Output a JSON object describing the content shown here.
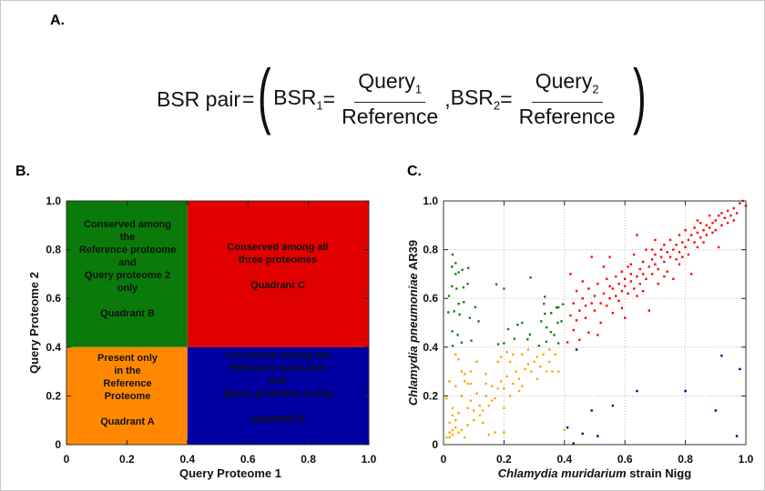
{
  "panels": {
    "a": "A.",
    "b": "B.",
    "c": "C."
  },
  "formula": {
    "lhs": "BSR pair",
    "eq": "=",
    "bsr1": "BSR",
    "bsr1_sub": "1",
    "q1": "Query",
    "q1_sub": "1",
    "ref1": "Reference",
    "comma": ",",
    "bsr2": "BSR",
    "bsr2_sub": "2",
    "q2": "Query",
    "q2_sub": "2",
    "ref2": "Reference"
  },
  "quadrant_chart": {
    "type": "diagram",
    "xlabel": "Query Proteome 1",
    "ylabel": "Query Proteome 2",
    "xlim": [
      0,
      1.0
    ],
    "ylim": [
      0,
      1.0
    ],
    "x_ticks": [
      "0",
      "0.2",
      "0.4",
      "0.6",
      "0.8",
      "1.0"
    ],
    "y_ticks": [
      "0",
      "0.2",
      "0.4",
      "0.6",
      "0.8",
      "1.0"
    ],
    "threshold": 0.4,
    "quadrants": [
      {
        "id": "B",
        "color": "#0a7a0a",
        "lines": [
          "Conserved among",
          "the",
          "Reference proteome",
          "and",
          "Query proteome 2",
          "only"
        ],
        "name": "Quadrant B"
      },
      {
        "id": "C",
        "color": "#e00000",
        "lines": [
          "Conserved among all",
          "three proteomes"
        ],
        "name": "Quadrant C"
      },
      {
        "id": "A",
        "color": "#ff8800",
        "lines": [
          "Present only",
          "in the",
          "Reference",
          "Proteome"
        ],
        "name": "Quadrant A"
      },
      {
        "id": "D",
        "color": "#0000a2",
        "lines": [
          "Conserved among the",
          "Reference proteome",
          "and",
          "Query proteome 1 only"
        ],
        "name": "Quadrant D"
      }
    ]
  },
  "chart_data": {
    "type": "scatter",
    "xlabel_italic": "Chlamydia muridarium",
    "xlabel_rest": " strain Nigg",
    "ylabel_italic": "Chlamydia pneumoniae",
    "ylabel_rest": " AR39",
    "xlim": [
      0,
      1.0
    ],
    "ylim": [
      0,
      1.0
    ],
    "x_ticks": [
      "0",
      "0.2",
      "0.4",
      "0.6",
      "0.8",
      "1.0"
    ],
    "y_ticks": [
      "0",
      "0.2",
      "0.4",
      "0.6",
      "0.8",
      "1.0"
    ],
    "grid": true,
    "series": [
      {
        "color": "#ffa500",
        "points": [
          [
            0.01,
            0.03
          ],
          [
            0.01,
            0.19
          ],
          [
            0.02,
            0.05
          ],
          [
            0.02,
            0.03
          ],
          [
            0.02,
            0.09
          ],
          [
            0.02,
            0.26
          ],
          [
            0.03,
            0.06
          ],
          [
            0.03,
            0.12
          ],
          [
            0.03,
            0.15
          ],
          [
            0.03,
            0.04
          ],
          [
            0.04,
            0.07
          ],
          [
            0.04,
            0.1
          ],
          [
            0.04,
            0.24
          ],
          [
            0.04,
            0.37
          ],
          [
            0.05,
            0.05
          ],
          [
            0.05,
            0.13
          ],
          [
            0.05,
            0.35
          ],
          [
            0.06,
            0.06
          ],
          [
            0.06,
            0.2
          ],
          [
            0.06,
            0.3
          ],
          [
            0.07,
            0.03
          ],
          [
            0.07,
            0.26
          ],
          [
            0.07,
            0.29
          ],
          [
            0.08,
            0.08
          ],
          [
            0.08,
            0.15
          ],
          [
            0.08,
            0.25
          ],
          [
            0.09,
            0.18
          ],
          [
            0.09,
            0.3
          ],
          [
            0.1,
            0.1
          ],
          [
            0.1,
            0.14
          ],
          [
            0.11,
            0.34
          ],
          [
            0.12,
            0.16
          ],
          [
            0.12,
            0.12
          ],
          [
            0.13,
            0.14
          ],
          [
            0.14,
            0.29
          ],
          [
            0.14,
            0.2
          ],
          [
            0.14,
            0.25
          ],
          [
            0.15,
            0.04
          ],
          [
            0.15,
            0.16
          ],
          [
            0.16,
            0.18
          ],
          [
            0.16,
            0.24
          ],
          [
            0.17,
            0.19
          ],
          [
            0.17,
            0.05
          ],
          [
            0.18,
            0.34
          ],
          [
            0.18,
            0.23
          ],
          [
            0.19,
            0.36
          ],
          [
            0.19,
            0.26
          ],
          [
            0.2,
            0.15
          ],
          [
            0.2,
            0.05
          ],
          [
            0.2,
            0.23
          ],
          [
            0.21,
            0.28
          ],
          [
            0.21,
            0.38
          ],
          [
            0.22,
            0.2
          ],
          [
            0.22,
            0.34
          ],
          [
            0.23,
            0.37
          ],
          [
            0.23,
            0.25
          ],
          [
            0.24,
            0.3
          ],
          [
            0.25,
            0.22
          ],
          [
            0.25,
            0.27
          ],
          [
            0.26,
            0.37
          ],
          [
            0.26,
            0.24
          ],
          [
            0.27,
            0.31
          ],
          [
            0.28,
            0.33
          ],
          [
            0.28,
            0.39
          ],
          [
            0.29,
            0.3
          ],
          [
            0.3,
            0.34
          ],
          [
            0.31,
            0.27
          ],
          [
            0.31,
            0.36
          ],
          [
            0.32,
            0.32
          ],
          [
            0.33,
            0.37
          ],
          [
            0.34,
            0.3
          ],
          [
            0.35,
            0.39
          ],
          [
            0.35,
            0.34
          ],
          [
            0.36,
            0.3
          ],
          [
            0.37,
            0.37
          ],
          [
            0.38,
            0.3
          ],
          [
            0.4,
            0.06
          ],
          [
            0.11,
            0.21
          ],
          [
            0.13,
            0.09
          ],
          [
            0.09,
            0.25
          ]
        ]
      },
      {
        "color": "#1a7a1a",
        "points": [
          [
            0.03,
            0.78
          ],
          [
            0.04,
            0.745
          ],
          [
            0.028,
            0.73
          ],
          [
            0.062,
            0.717
          ],
          [
            0.082,
            0.725
          ],
          [
            0.04,
            0.7
          ],
          [
            0.05,
            0.707
          ],
          [
            0.028,
            0.65
          ],
          [
            0.043,
            0.64
          ],
          [
            0.066,
            0.645
          ],
          [
            0.08,
            0.66
          ],
          [
            0.018,
            0.61
          ],
          [
            0.067,
            0.585
          ],
          [
            0.05,
            0.578
          ],
          [
            0.105,
            0.564
          ],
          [
            0.016,
            0.543
          ],
          [
            0.035,
            0.547
          ],
          [
            0.053,
            0.534
          ],
          [
            0.087,
            0.52
          ],
          [
            0.116,
            0.506
          ],
          [
            0.029,
            0.465
          ],
          [
            0.047,
            0.45
          ],
          [
            0.03,
            0.405
          ],
          [
            0.06,
            0.419
          ],
          [
            0.092,
            0.427
          ],
          [
            0.175,
            0.658
          ],
          [
            0.2,
            0.64
          ],
          [
            0.288,
            0.686
          ],
          [
            0.214,
            0.474
          ],
          [
            0.245,
            0.492
          ],
          [
            0.26,
            0.5
          ],
          [
            0.181,
            0.412
          ],
          [
            0.2,
            0.416
          ],
          [
            0.235,
            0.434
          ],
          [
            0.286,
            0.452
          ],
          [
            0.278,
            0.432
          ],
          [
            0.335,
            0.607
          ],
          [
            0.332,
            0.578
          ],
          [
            0.323,
            0.506
          ],
          [
            0.335,
            0.537
          ],
          [
            0.356,
            0.54
          ],
          [
            0.374,
            0.563
          ],
          [
            0.38,
            0.563
          ],
          [
            0.395,
            0.576
          ],
          [
            0.341,
            0.481
          ],
          [
            0.355,
            0.462
          ],
          [
            0.366,
            0.45
          ],
          [
            0.378,
            0.5
          ],
          [
            0.39,
            0.506
          ],
          [
            0.316,
            0.406
          ],
          [
            0.34,
            0.422
          ],
          [
            0.38,
            0.416
          ]
        ]
      },
      {
        "color": "#ff0000",
        "points": [
          [
            0.41,
            0.42
          ],
          [
            0.42,
            0.53
          ],
          [
            0.42,
            0.7
          ],
          [
            0.43,
            0.47
          ],
          [
            0.43,
            0.58
          ],
          [
            0.44,
            0.51
          ],
          [
            0.44,
            0.63
          ],
          [
            0.45,
            0.55
          ],
          [
            0.45,
            0.43
          ],
          [
            0.46,
            0.6
          ],
          [
            0.46,
            0.67
          ],
          [
            0.47,
            0.52
          ],
          [
            0.47,
            0.57
          ],
          [
            0.48,
            0.46
          ],
          [
            0.48,
            0.64
          ],
          [
            0.49,
            0.58
          ],
          [
            0.49,
            0.77
          ],
          [
            0.5,
            0.55
          ],
          [
            0.5,
            0.61
          ],
          [
            0.51,
            0.66
          ],
          [
            0.51,
            0.45
          ],
          [
            0.52,
            0.58
          ],
          [
            0.52,
            0.5
          ],
          [
            0.53,
            0.73
          ],
          [
            0.53,
            0.62
          ],
          [
            0.54,
            0.57
          ],
          [
            0.54,
            0.68
          ],
          [
            0.55,
            0.6
          ],
          [
            0.55,
            0.77
          ],
          [
            0.56,
            0.64
          ],
          [
            0.56,
            0.54
          ],
          [
            0.57,
            0.69
          ],
          [
            0.57,
            0.61
          ],
          [
            0.58,
            0.66
          ],
          [
            0.58,
            0.59
          ],
          [
            0.59,
            0.71
          ],
          [
            0.59,
            0.63
          ],
          [
            0.6,
            0.52
          ],
          [
            0.6,
            0.68
          ],
          [
            0.6,
            0.65
          ],
          [
            0.61,
            0.73
          ],
          [
            0.61,
            0.62
          ],
          [
            0.62,
            0.67
          ],
          [
            0.62,
            0.7
          ],
          [
            0.63,
            0.78
          ],
          [
            0.63,
            0.64
          ],
          [
            0.64,
            0.69
          ],
          [
            0.64,
            0.61
          ],
          [
            0.64,
            0.86
          ],
          [
            0.65,
            0.72
          ],
          [
            0.65,
            0.66
          ],
          [
            0.66,
            0.7
          ],
          [
            0.66,
            0.75
          ],
          [
            0.67,
            0.68
          ],
          [
            0.67,
            0.8
          ],
          [
            0.68,
            0.73
          ],
          [
            0.68,
            0.55
          ],
          [
            0.69,
            0.76
          ],
          [
            0.69,
            0.7
          ],
          [
            0.7,
            0.74
          ],
          [
            0.7,
            0.78
          ],
          [
            0.7,
            0.84
          ],
          [
            0.71,
            0.72
          ],
          [
            0.71,
            0.66
          ],
          [
            0.72,
            0.77
          ],
          [
            0.72,
            0.8
          ],
          [
            0.73,
            0.75
          ],
          [
            0.73,
            0.82
          ],
          [
            0.74,
            0.79
          ],
          [
            0.74,
            0.71
          ],
          [
            0.75,
            0.77
          ],
          [
            0.75,
            0.84
          ],
          [
            0.76,
            0.8
          ],
          [
            0.76,
            0.68
          ],
          [
            0.77,
            0.82
          ],
          [
            0.77,
            0.76
          ],
          [
            0.78,
            0.79
          ],
          [
            0.78,
            0.86
          ],
          [
            0.79,
            0.83
          ],
          [
            0.79,
            0.77
          ],
          [
            0.8,
            0.81
          ],
          [
            0.8,
            0.88
          ],
          [
            0.81,
            0.84
          ],
          [
            0.81,
            0.78
          ],
          [
            0.82,
            0.86
          ],
          [
            0.82,
            0.7
          ],
          [
            0.83,
            0.83
          ],
          [
            0.83,
            0.89
          ],
          [
            0.84,
            0.87
          ],
          [
            0.84,
            0.81
          ],
          [
            0.85,
            0.85
          ],
          [
            0.85,
            0.91
          ],
          [
            0.86,
            0.88
          ],
          [
            0.86,
            0.83
          ],
          [
            0.87,
            0.9
          ],
          [
            0.87,
            0.86
          ],
          [
            0.88,
            0.89
          ],
          [
            0.88,
            0.94
          ],
          [
            0.89,
            0.87
          ],
          [
            0.89,
            0.91
          ],
          [
            0.9,
            0.92
          ],
          [
            0.9,
            0.88
          ],
          [
            0.91,
            0.81
          ],
          [
            0.91,
            0.94
          ],
          [
            0.92,
            0.9
          ],
          [
            0.92,
            0.95
          ],
          [
            0.93,
            0.93
          ],
          [
            0.94,
            0.96
          ],
          [
            0.94,
            0.91
          ],
          [
            0.95,
            0.94
          ],
          [
            0.96,
            0.97
          ],
          [
            0.96,
            0.92
          ],
          [
            0.97,
            0.95
          ],
          [
            0.98,
            0.99
          ],
          [
            0.99,
            1.0
          ],
          [
            1.0,
            0.98
          ],
          [
            0.59,
            0.56
          ],
          [
            0.66,
            0.63
          ],
          [
            0.73,
            0.69
          ],
          [
            0.78,
            0.74
          ],
          [
            0.62,
            0.74
          ],
          [
            0.55,
            0.65
          ],
          [
            0.69,
            0.8
          ],
          [
            0.84,
            0.92
          ]
        ]
      },
      {
        "color": "#00008b",
        "points": [
          [
            0.44,
            0.39
          ],
          [
            0.92,
            0.365
          ],
          [
            0.98,
            0.31
          ],
          [
            0.64,
            0.22
          ],
          [
            0.8,
            0.22
          ],
          [
            0.56,
            0.16
          ],
          [
            0.49,
            0.14
          ],
          [
            0.9,
            0.14
          ],
          [
            0.41,
            0.07
          ],
          [
            0.46,
            0.045
          ],
          [
            0.51,
            0.035
          ],
          [
            0.97,
            0.035
          ],
          [
            0.43,
            0.005
          ]
        ]
      }
    ]
  }
}
